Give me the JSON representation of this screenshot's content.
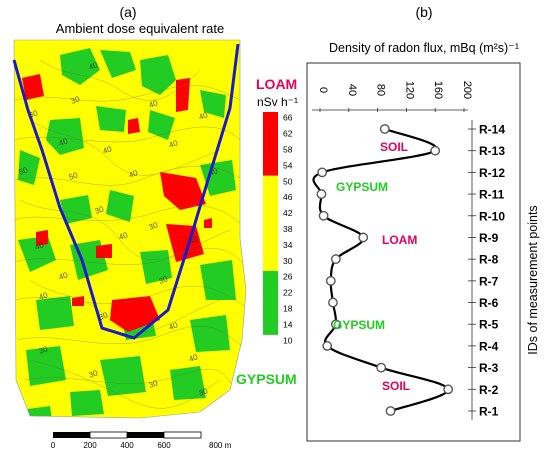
{
  "panels": {
    "a_label": "(a)",
    "b_label": "(b)"
  },
  "map": {
    "title": "Ambient dose equivalent rate",
    "legend_unit": "nSv h⁻¹",
    "legend_top_label": "LOAM",
    "legend_bottom_label": "GYPSUM",
    "legend_ticks": [
      "66",
      "62",
      "58",
      "54",
      "50",
      "46",
      "42",
      "38",
      "34",
      "30",
      "26",
      "22",
      "18",
      "14",
      "10"
    ],
    "scale_labels": [
      "0",
      "200",
      "400",
      "600",
      "800 m"
    ],
    "contour_labels": [
      "30",
      "30",
      "40",
      "40",
      "40",
      "40",
      "40",
      "40",
      "50",
      "50",
      "40",
      "40",
      "30",
      "30",
      "40",
      "40",
      "40",
      "40",
      "30",
      "40",
      "30",
      "40",
      "40",
      "30",
      "30",
      "30",
      "30"
    ],
    "colors": {
      "high": "#ff0000",
      "mid": "#ffff00",
      "low": "#22cc22",
      "line": "#1a1acc",
      "label_loam": "#e8005a",
      "label_gypsum": "#22cc22"
    }
  },
  "chart_data": {
    "type": "line",
    "title": "",
    "xlabel": "Density of radon flux, mBq (m²s)⁻¹",
    "ylabel": "IDs of measurement points",
    "xlim": [
      0,
      200
    ],
    "x_ticks": [
      0,
      40,
      80,
      120,
      160,
      200
    ],
    "categories": [
      "R-1",
      "R-2",
      "R-3",
      "R-4",
      "R-5",
      "R-6",
      "R-7",
      "R-8",
      "R-9",
      "R-10",
      "R-11",
      "R-12",
      "R-13",
      "R-14"
    ],
    "series": [
      {
        "values": [
          98,
          178,
          85,
          10,
          22,
          18,
          15,
          22,
          60,
          5,
          2,
          3,
          160,
          90
        ]
      }
    ],
    "annotations": [
      {
        "text": "SOIL",
        "color": "#e8005a"
      },
      {
        "text": "GYPSUM",
        "color": "#22cc22"
      },
      {
        "text": "LOAM",
        "color": "#e8005a"
      },
      {
        "text": "GYPSUM",
        "color": "#22cc22"
      },
      {
        "text": "SOIL",
        "color": "#e8005a"
      }
    ]
  }
}
